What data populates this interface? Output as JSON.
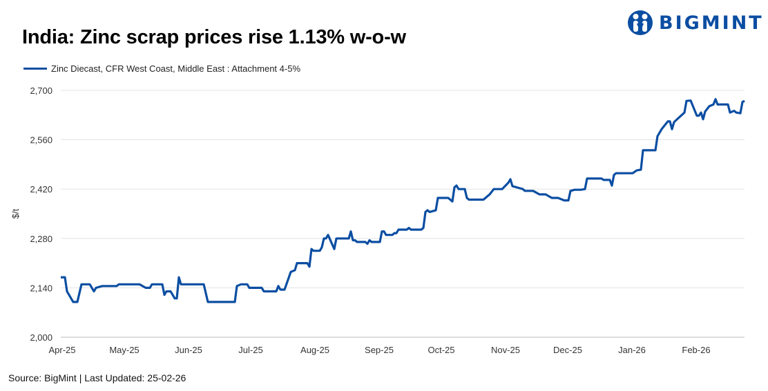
{
  "header": {
    "title": "India: Zinc scrap prices rise 1.13% w-o-w",
    "logo_text": "BIGMINT"
  },
  "footer": {
    "source": "Source: BigMint | Last Updated: 25-02-26"
  },
  "chart_data": {
    "type": "line",
    "title": "India: Zinc scrap prices rise 1.13% w-o-w",
    "xlabel": "",
    "ylabel": "$/t",
    "ylim": [
      2000,
      2700
    ],
    "yticks": [
      2000,
      2140,
      2280,
      2420,
      2560,
      2700
    ],
    "ytick_labels": [
      "2,000",
      "2,140",
      "2,280",
      "2,420",
      "2,560",
      "2,700"
    ],
    "xlim": [
      "2025-04-01",
      "2026-02-25"
    ],
    "xticks": [
      "2025-04-01",
      "2025-05-01",
      "2025-06-01",
      "2025-07-01",
      "2025-08-01",
      "2025-09-01",
      "2025-10-01",
      "2025-11-01",
      "2025-12-01",
      "2026-01-01",
      "2026-02-01"
    ],
    "xtick_labels": [
      "Apr-25",
      "May-25",
      "Jun-25",
      "Jul-25",
      "Aug-25",
      "Sep-25",
      "Oct-25",
      "Nov-25",
      "Dec-25",
      "Jan-26",
      "Feb-26"
    ],
    "grid": "horizontal",
    "legend_position": "top-left",
    "color": "#0b4ea2",
    "series": [
      {
        "name": "Zinc Diecast, CFR West Coast, Middle East : Attachment 4-5%",
        "x": [
          "2025-04-01",
          "2025-04-03",
          "2025-04-04",
          "2025-04-07",
          "2025-04-09",
          "2025-04-11",
          "2025-04-15",
          "2025-04-17",
          "2025-04-18",
          "2025-04-21",
          "2025-04-28",
          "2025-04-29",
          "2025-05-09",
          "2025-05-12",
          "2025-05-14",
          "2025-05-15",
          "2025-05-20",
          "2025-05-21",
          "2025-05-22",
          "2025-05-24",
          "2025-05-26",
          "2025-05-27",
          "2025-05-28",
          "2025-05-29",
          "2025-06-09",
          "2025-06-11",
          "2025-06-24",
          "2025-06-25",
          "2025-06-27",
          "2025-06-30",
          "2025-07-01",
          "2025-07-07",
          "2025-07-08",
          "2025-07-14",
          "2025-07-15",
          "2025-07-16",
          "2025-07-18",
          "2025-07-21",
          "2025-07-23",
          "2025-07-24",
          "2025-07-29",
          "2025-07-30",
          "2025-07-31",
          "2025-08-01",
          "2025-08-04",
          "2025-08-05",
          "2025-08-06",
          "2025-08-07",
          "2025-08-08",
          "2025-08-11",
          "2025-08-12",
          "2025-08-18",
          "2025-08-19",
          "2025-08-20",
          "2025-08-21",
          "2025-08-22",
          "2025-08-26",
          "2025-08-27",
          "2025-08-28",
          "2025-08-29",
          "2025-09-02",
          "2025-09-03",
          "2025-09-04",
          "2025-09-05",
          "2025-09-08",
          "2025-09-09",
          "2025-09-10",
          "2025-09-11",
          "2025-09-15",
          "2025-09-16",
          "2025-09-17",
          "2025-09-22",
          "2025-09-23",
          "2025-09-24",
          "2025-09-25",
          "2025-09-26",
          "2025-09-29",
          "2025-09-30",
          "2025-10-05",
          "2025-10-07",
          "2025-10-08",
          "2025-10-09",
          "2025-10-10",
          "2025-10-13",
          "2025-10-14",
          "2025-10-15",
          "2025-10-22",
          "2025-10-24",
          "2025-10-25",
          "2025-10-27",
          "2025-10-31",
          "2025-11-03",
          "2025-11-04",
          "2025-11-05",
          "2025-11-07",
          "2025-11-10",
          "2025-11-11",
          "2025-11-15",
          "2025-11-18",
          "2025-11-21",
          "2025-11-24",
          "2025-11-27",
          "2025-11-30",
          "2025-12-02",
          "2025-12-03",
          "2025-12-05",
          "2025-12-08",
          "2025-12-10",
          "2025-12-11",
          "2025-12-18",
          "2025-12-19",
          "2025-12-22",
          "2025-12-23",
          "2025-12-24",
          "2025-12-25",
          "2026-01-02",
          "2026-01-04",
          "2026-01-06",
          "2026-01-07",
          "2026-01-13",
          "2026-01-14",
          "2026-01-16",
          "2026-01-19",
          "2026-01-20",
          "2026-01-21",
          "2026-01-22",
          "2026-01-27",
          "2026-01-28",
          "2026-01-30",
          "2026-02-02",
          "2026-02-03",
          "2026-02-04",
          "2026-02-05",
          "2026-02-06",
          "2026-02-08",
          "2026-02-10",
          "2026-02-11",
          "2026-02-12",
          "2026-02-17",
          "2026-02-18",
          "2026-02-20",
          "2026-02-21",
          "2026-02-23",
          "2026-02-24",
          "2026-02-25"
        ],
        "values": [
          2170,
          2170,
          2130,
          2100,
          2100,
          2150,
          2150,
          2130,
          2140,
          2145,
          2145,
          2150,
          2150,
          2140,
          2140,
          2150,
          2150,
          2120,
          2130,
          2130,
          2110,
          2110,
          2170,
          2150,
          2150,
          2100,
          2100,
          2145,
          2150,
          2150,
          2140,
          2140,
          2130,
          2130,
          2145,
          2135,
          2135,
          2185,
          2190,
          2210,
          2210,
          2200,
          2250,
          2245,
          2245,
          2255,
          2280,
          2280,
          2290,
          2250,
          2280,
          2280,
          2300,
          2275,
          2275,
          2270,
          2270,
          2265,
          2275,
          2270,
          2270,
          2300,
          2300,
          2290,
          2290,
          2295,
          2295,
          2305,
          2305,
          2310,
          2305,
          2305,
          2310,
          2355,
          2360,
          2355,
          2360,
          2395,
          2395,
          2385,
          2425,
          2430,
          2420,
          2420,
          2395,
          2390,
          2390,
          2400,
          2405,
          2420,
          2420,
          2438,
          2448,
          2428,
          2425,
          2420,
          2415,
          2415,
          2405,
          2405,
          2395,
          2395,
          2388,
          2388,
          2415,
          2418,
          2418,
          2420,
          2450,
          2450,
          2446,
          2446,
          2430,
          2460,
          2465,
          2465,
          2473,
          2475,
          2530,
          2530,
          2570,
          2590,
          2612,
          2612,
          2590,
          2610,
          2637,
          2670,
          2671,
          2628,
          2628,
          2637,
          2618,
          2640,
          2655,
          2660,
          2675,
          2660,
          2660,
          2637,
          2642,
          2637,
          2635,
          2667,
          2670
        ]
      }
    ]
  }
}
